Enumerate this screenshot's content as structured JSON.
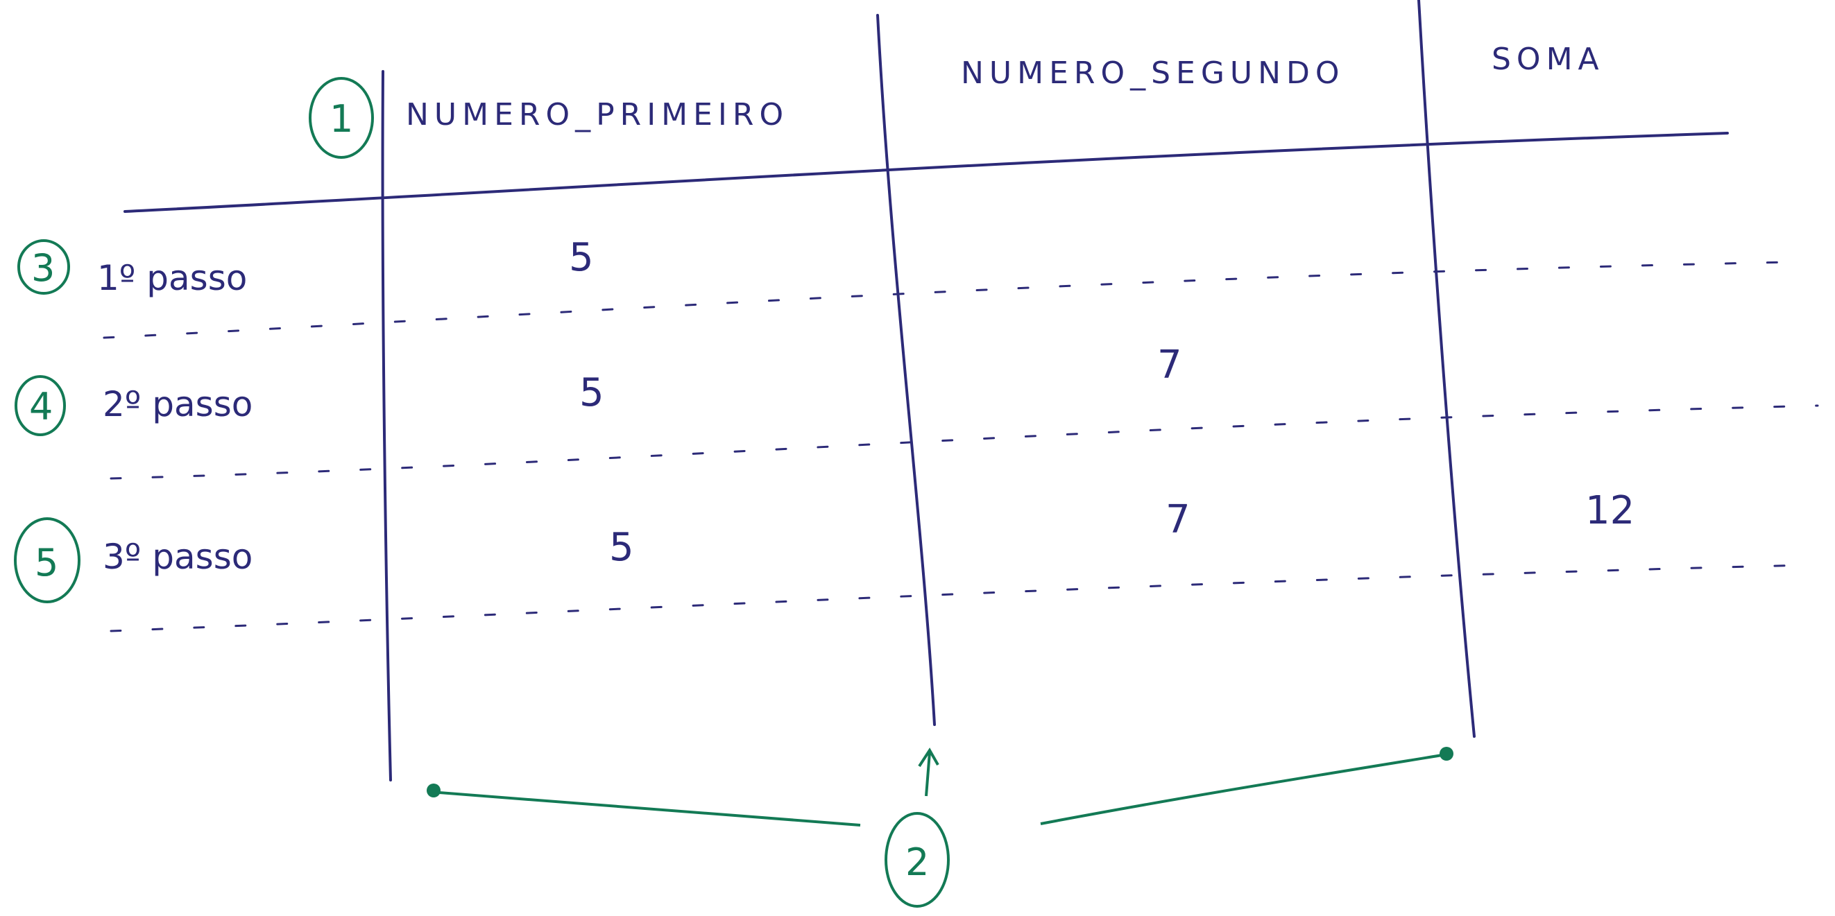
{
  "headers": [
    "NUMERO_PRIMEIRO",
    "NUMERO_SEGUNDO",
    "SOMA"
  ],
  "rows": [
    {
      "step": "1º passo",
      "values": [
        "5",
        "",
        ""
      ]
    },
    {
      "step": "2º passo",
      "values": [
        "5",
        "7",
        ""
      ]
    },
    {
      "step": "3º passo",
      "values": [
        "5",
        "7",
        "12"
      ]
    }
  ],
  "markers": {
    "header_marker": "1",
    "columns_marker": "2",
    "row_markers": [
      "3",
      "4",
      "5"
    ]
  },
  "colors": {
    "ink_blue": "#2c2a78",
    "ink_green": "#137a55"
  }
}
